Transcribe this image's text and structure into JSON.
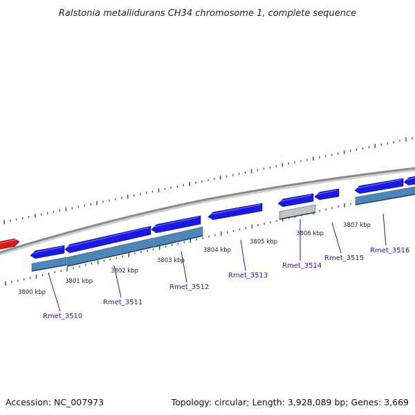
{
  "title": "Ralstonia metallidurans CH34 chromosome 1, complete sequence",
  "footer": {
    "accession": "Accession: NC_007973",
    "summary": "Topology: circular; Length: 3,928,089 bp; Genes: 3,669"
  },
  "colors": {
    "backbone": "#8a8a8a",
    "tick": "#1f7a1f",
    "gene_blue": "#1a1ae6",
    "gene_red": "#e61414",
    "gene_gray": "#c4c4c4",
    "feature_steel": "#4f86b8",
    "label": "#1a1aa0",
    "leader": "#1a1aa0"
  },
  "scale": {
    "kbp_labels": [
      "3800 kbp",
      "3801 kbp",
      "3802 kbp",
      "3803 kbp",
      "3804 kbp",
      "3805 kbp",
      "3806 kbp",
      "3807 kbp"
    ]
  },
  "genes": [
    "Rmet_3510",
    "Rmet_3511",
    "Rmet_3512",
    "Rmet_3513",
    "Rmet_3514",
    "Rmet_3515",
    "Rmet_3516"
  ]
}
